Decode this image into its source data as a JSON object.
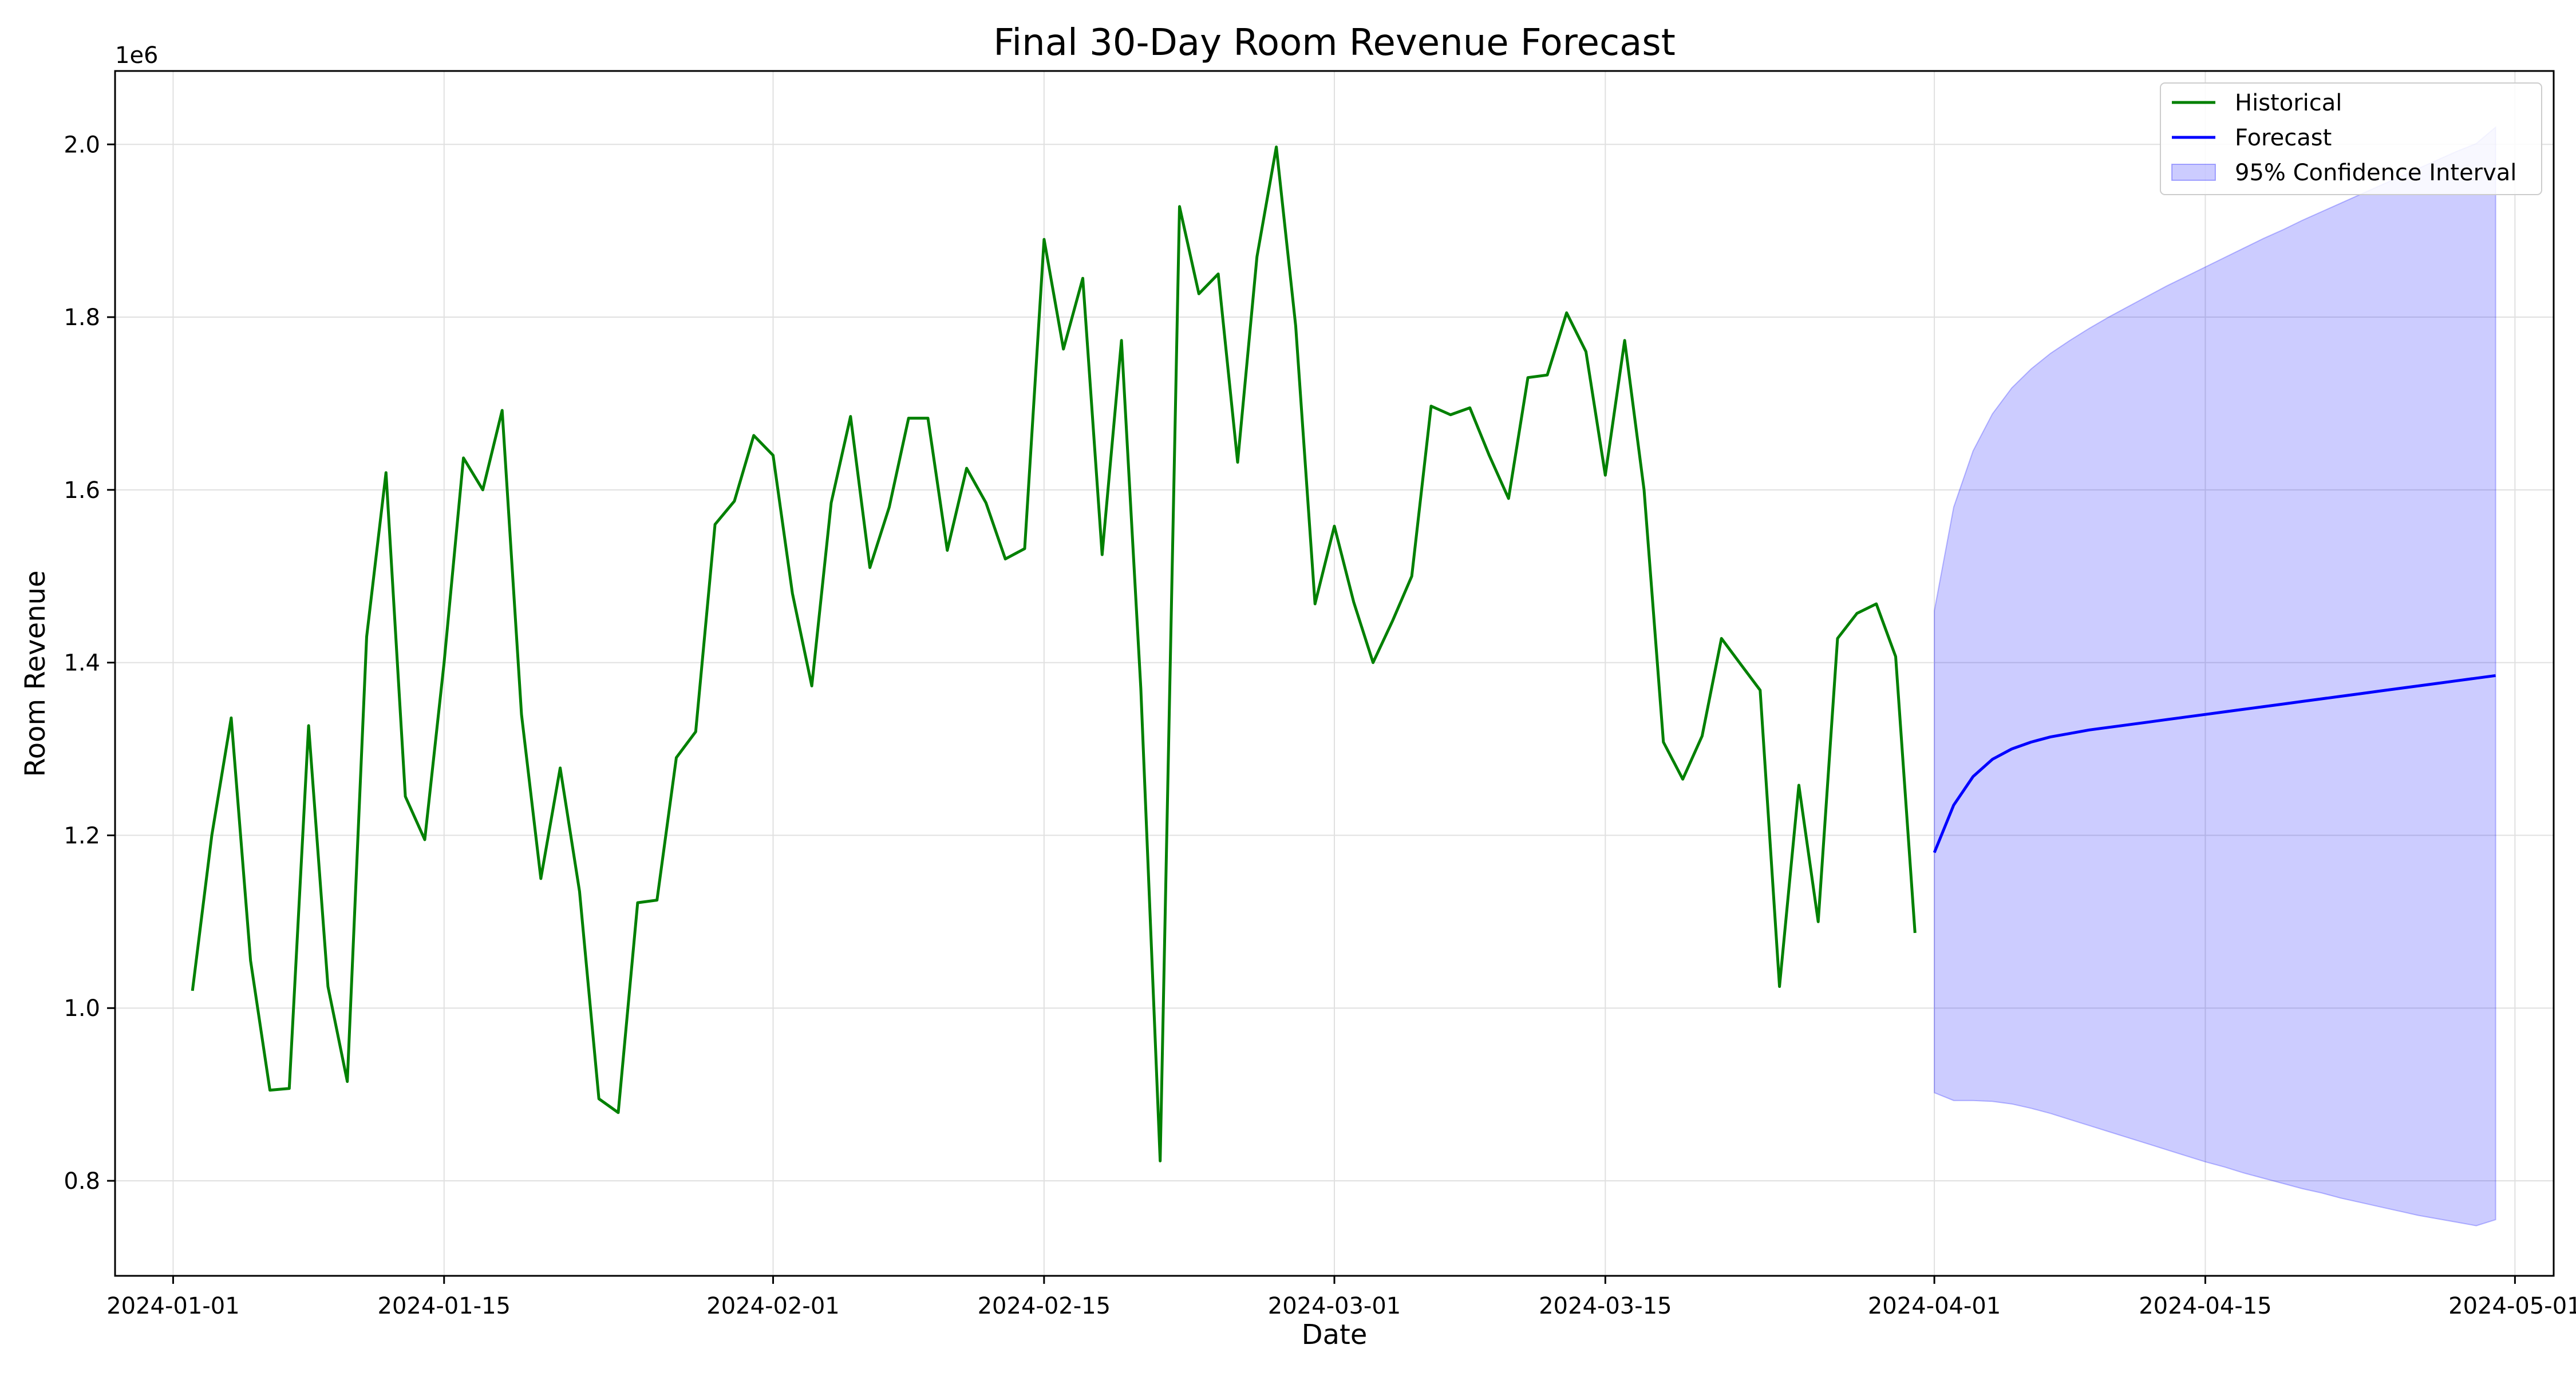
{
  "chart_data": {
    "type": "line",
    "title": "Final 30-Day Room Revenue Forecast",
    "xlabel": "Date",
    "ylabel": "Room Revenue",
    "y_offset_label": "1e6",
    "xlim": [
      "2023-12-29",
      "2024-05-03"
    ],
    "ylim": [
      0.69,
      2.085
    ],
    "grid": true,
    "legend_position": "top-right",
    "x_ticks": [
      "2024-01-01",
      "2024-01-15",
      "2024-02-01",
      "2024-02-15",
      "2024-03-01",
      "2024-03-15",
      "2024-04-01",
      "2024-04-15",
      "2024-05-01"
    ],
    "y_ticks": [
      0.8,
      1.0,
      1.2,
      1.4,
      1.6,
      1.8,
      2.0
    ],
    "y_tick_labels": [
      "0.8",
      "1.0",
      "1.2",
      "1.4",
      "1.6",
      "1.8",
      "2.0"
    ],
    "colors": {
      "historical": "#008000",
      "forecast": "#0000ff",
      "confidence_fill": "#0000ff",
      "grid": "#e0e0e0"
    },
    "legend": [
      {
        "key": "historical",
        "label": "Historical"
      },
      {
        "key": "forecast",
        "label": "Forecast"
      },
      {
        "key": "confidence",
        "label": "95% Confidence Interval"
      }
    ],
    "historical": {
      "name": "Historical",
      "start_date": "2024-01-02",
      "values": [
        1.02,
        1.2,
        1.336,
        1.055,
        0.905,
        0.907,
        1.327,
        1.025,
        0.915,
        1.43,
        1.62,
        1.245,
        1.195,
        1.4,
        1.637,
        1.6,
        1.692,
        1.34,
        1.15,
        1.278,
        1.135,
        0.895,
        0.879,
        1.122,
        1.125,
        1.29,
        1.32,
        1.56,
        1.587,
        1.663,
        1.64,
        1.48,
        1.373,
        1.585,
        1.685,
        1.51,
        1.58,
        1.683,
        1.683,
        1.53,
        1.625,
        1.585,
        1.52,
        1.532,
        1.89,
        1.763,
        1.845,
        1.525,
        1.773,
        1.37,
        0.823,
        1.928,
        1.827,
        1.85,
        1.632,
        1.87,
        1.997,
        1.79,
        1.468,
        1.558,
        1.47,
        1.4,
        1.448,
        1.5,
        1.697,
        1.687,
        1.695,
        1.64,
        1.59,
        1.73,
        1.733,
        1.805,
        1.76,
        1.617,
        1.773,
        1.6,
        1.308,
        1.265,
        1.315,
        1.428,
        1.398,
        1.368,
        1.025,
        1.258,
        1.1,
        1.428,
        1.457,
        1.468,
        1.407,
        1.087
      ]
    },
    "forecast": {
      "name": "Forecast",
      "start_date": "2024-04-01",
      "values": [
        1.18,
        1.235,
        1.268,
        1.288,
        1.3,
        1.308,
        1.314,
        1.318,
        1.322,
        1.325,
        1.328,
        1.331,
        1.334,
        1.337,
        1.34,
        1.343,
        1.346,
        1.349,
        1.352,
        1.355,
        1.358,
        1.361,
        1.364,
        1.367,
        1.37,
        1.373,
        1.376,
        1.379,
        1.382,
        1.385
      ],
      "lower": [
        0.902,
        0.893,
        0.893,
        0.892,
        0.889,
        0.884,
        0.878,
        0.871,
        0.864,
        0.857,
        0.85,
        0.843,
        0.836,
        0.829,
        0.822,
        0.816,
        0.809,
        0.803,
        0.797,
        0.791,
        0.786,
        0.78,
        0.775,
        0.77,
        0.765,
        0.76,
        0.756,
        0.752,
        0.748,
        0.755
      ],
      "upper": [
        1.46,
        1.58,
        1.645,
        1.688,
        1.718,
        1.74,
        1.758,
        1.773,
        1.787,
        1.8,
        1.812,
        1.824,
        1.836,
        1.847,
        1.858,
        1.869,
        1.88,
        1.891,
        1.901,
        1.912,
        1.922,
        1.932,
        1.942,
        1.952,
        1.962,
        1.972,
        1.982,
        1.992,
        2.001,
        2.02
      ]
    }
  }
}
